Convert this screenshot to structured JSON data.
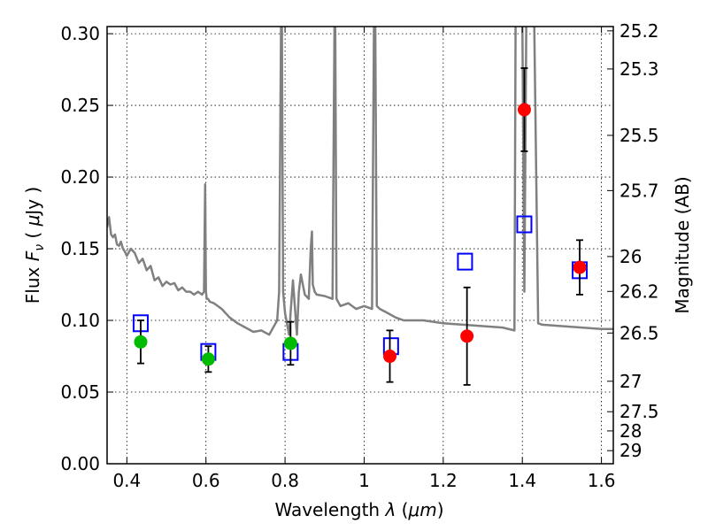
{
  "chart_data": {
    "type": "scatter",
    "xlabel_text": "Wavelength",
    "xlabel_var": "λ",
    "xlabel_unit": "μm",
    "ylabel_text": "Flux",
    "ylabel_var": "F",
    "ylabel_sub": "ν",
    "ylabel_unit_prefix": "μ",
    "ylabel_unit": "Jy",
    "y2label": "Magnitude (AB)",
    "xlim": [
      0.35,
      1.63
    ],
    "ylim": [
      0.0,
      0.305
    ],
    "grid": true,
    "x_ticks": [
      0.4,
      0.6,
      0.8,
      1.0,
      1.2,
      1.4,
      1.6
    ],
    "x_tick_labels": [
      "0.4",
      "0.6",
      "0.8",
      "1",
      "1.2",
      "1.4",
      "1.6"
    ],
    "y_ticks": [
      0.0,
      0.05,
      0.1,
      0.15,
      0.2,
      0.25,
      0.3
    ],
    "y_tick_labels": [
      "0.00",
      "0.05",
      "0.10",
      "0.15",
      "0.20",
      "0.25",
      "0.30"
    ],
    "mag_ticks": [
      25.2,
      25.3,
      25.5,
      25.7,
      26,
      26.2,
      26.5,
      27,
      27.5,
      28,
      29
    ],
    "mag_tick_labels": [
      "25.2",
      "25.3",
      "25.5",
      "25.7",
      "26",
      "26.2",
      "26.5",
      "27",
      "27.5",
      "28",
      "29"
    ],
    "series": [
      {
        "kind": "observed-green",
        "color": "#00bb00",
        "x": [
          0.435,
          0.606,
          0.814
        ],
        "y": [
          0.085,
          0.073,
          0.084
        ],
        "err": [
          0.015,
          0.009,
          0.015
        ]
      },
      {
        "kind": "observed-red",
        "color": "#ff0000",
        "x": [
          1.065,
          1.26,
          1.405,
          1.545
        ],
        "y": [
          0.075,
          0.089,
          0.247,
          0.137
        ],
        "err": [
          0.018,
          0.034,
          0.029,
          0.019
        ]
      },
      {
        "kind": "model-photometry",
        "color": "#0000ff",
        "x": [
          0.435,
          0.606,
          0.814,
          1.068,
          1.255,
          1.405,
          1.545
        ],
        "y": [
          0.098,
          0.078,
          0.078,
          0.082,
          0.141,
          0.167,
          0.135
        ]
      },
      {
        "kind": "model-spectrum",
        "color": "#808080",
        "x": [
          0.35,
          0.355,
          0.36,
          0.365,
          0.37,
          0.375,
          0.38,
          0.385,
          0.39,
          0.395,
          0.4,
          0.41,
          0.42,
          0.43,
          0.44,
          0.45,
          0.46,
          0.47,
          0.48,
          0.49,
          0.5,
          0.51,
          0.52,
          0.53,
          0.54,
          0.55,
          0.56,
          0.57,
          0.58,
          0.59,
          0.595,
          0.598,
          0.6,
          0.602,
          0.605,
          0.61,
          0.62,
          0.64,
          0.66,
          0.68,
          0.7,
          0.72,
          0.74,
          0.76,
          0.78,
          0.785,
          0.79,
          0.792,
          0.795,
          0.8,
          0.81,
          0.82,
          0.83,
          0.835,
          0.84,
          0.85,
          0.86,
          0.865,
          0.868,
          0.87,
          0.875,
          0.88,
          0.9,
          0.92,
          0.925,
          0.927,
          0.93,
          0.94,
          0.96,
          0.98,
          1.0,
          1.02,
          1.025,
          1.028,
          1.032,
          1.04,
          1.06,
          1.08,
          1.1,
          1.15,
          1.2,
          1.25,
          1.3,
          1.35,
          1.38,
          1.383,
          1.4,
          1.405,
          1.41,
          1.412,
          1.42,
          1.43,
          1.44,
          1.45,
          1.5,
          1.55,
          1.6,
          1.63
        ],
        "y": [
          0.165,
          0.172,
          0.16,
          0.158,
          0.16,
          0.153,
          0.152,
          0.155,
          0.15,
          0.148,
          0.145,
          0.15,
          0.147,
          0.14,
          0.143,
          0.135,
          0.138,
          0.128,
          0.13,
          0.124,
          0.127,
          0.125,
          0.126,
          0.121,
          0.123,
          0.12,
          0.12,
          0.118,
          0.12,
          0.118,
          0.12,
          0.195,
          0.12,
          0.115,
          0.115,
          0.113,
          0.112,
          0.108,
          0.102,
          0.098,
          0.095,
          0.092,
          0.093,
          0.09,
          0.1,
          0.12,
          0.31,
          0.31,
          0.12,
          0.105,
          0.09,
          0.128,
          0.09,
          0.12,
          0.132,
          0.118,
          0.115,
          0.15,
          0.162,
          0.125,
          0.12,
          0.118,
          0.117,
          0.115,
          0.31,
          0.31,
          0.115,
          0.11,
          0.112,
          0.108,
          0.11,
          0.108,
          0.31,
          0.31,
          0.11,
          0.108,
          0.105,
          0.102,
          0.1,
          0.1,
          0.098,
          0.097,
          0.096,
          0.095,
          0.093,
          0.31,
          0.31,
          0.12,
          0.31,
          0.31,
          0.31,
          0.31,
          0.098,
          0.097,
          0.096,
          0.095,
          0.094,
          0.094
        ]
      }
    ]
  }
}
